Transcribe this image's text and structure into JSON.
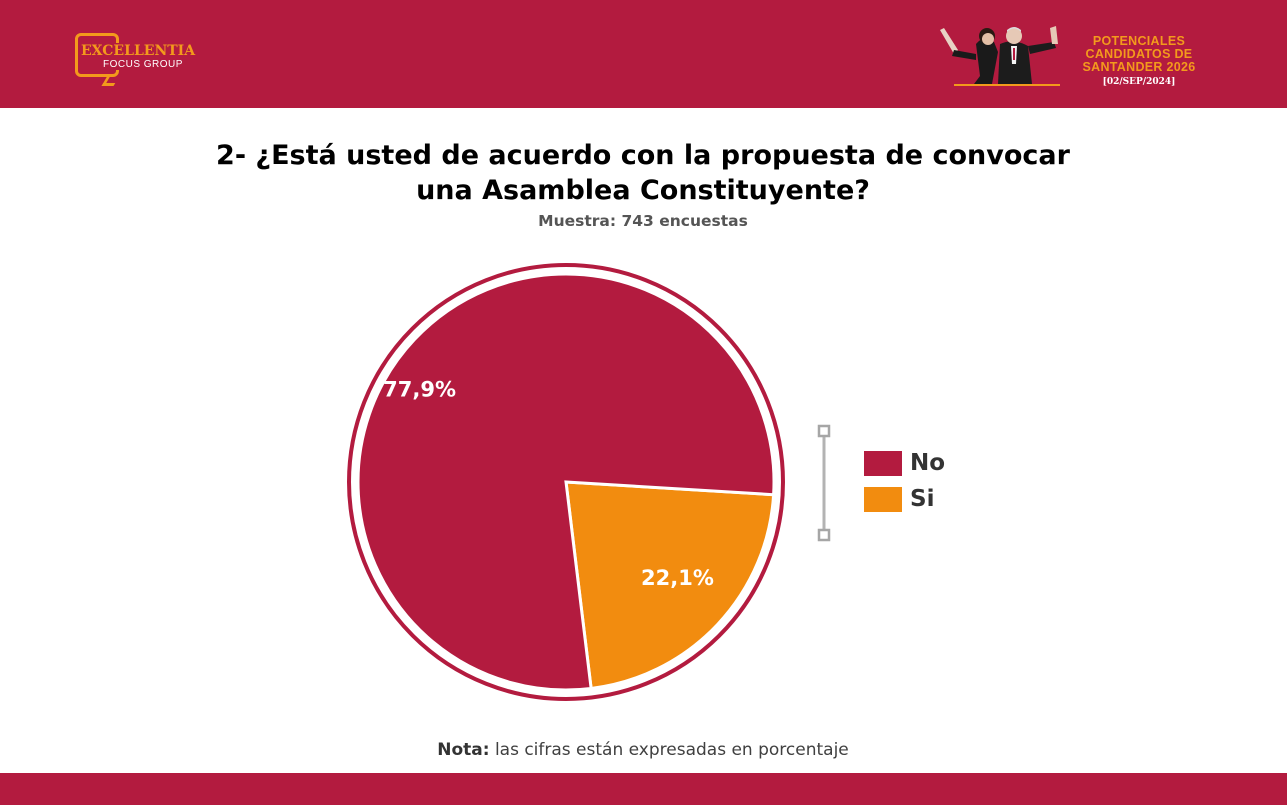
{
  "logo": {
    "name": "EXCELLENTIA",
    "sub": "FOCUS GROUP"
  },
  "brand": {
    "title_lines": [
      "POTENCIALES",
      "CANDIDATOS DE",
      "SANTANDER 2026"
    ],
    "date": "[02/SEP/2024]"
  },
  "colors": {
    "brand_red": "#b31b3f",
    "orange": "#f28c0f"
  },
  "chart_data": {
    "type": "pie",
    "title_lines": [
      "2- ¿Está usted de acuerdo con la propuesta de convocar",
      "una Asamblea Constituyente?"
    ],
    "subtitle": "Muestra: 743 encuestas",
    "slices": [
      {
        "label": "No",
        "value": 77.9,
        "display": "77,9%",
        "color": "#b31b3f"
      },
      {
        "label": "Si",
        "value": 22.1,
        "display": "22,1%",
        "color": "#f28c0f"
      }
    ],
    "legend_position": "right"
  },
  "note": {
    "bold": "Nota:",
    "text": "las cifras están expresadas en porcentaje"
  }
}
